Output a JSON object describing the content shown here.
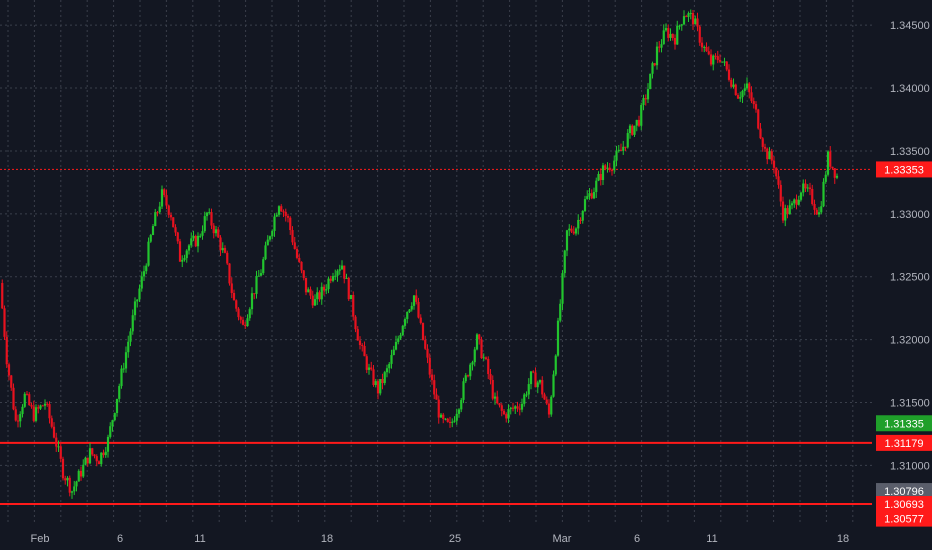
{
  "chart_data": {
    "type": "candlestick",
    "colors": {
      "background": "#131722",
      "up": "#22c52e",
      "down": "#e8121f",
      "grid": "#3a3f4b",
      "level_line": "#ff1a1a",
      "current_tag": "#1f9f2a",
      "neutral_tag": "#5a5e6b",
      "axis_text": "#b2b5be"
    },
    "x_start": "2019-01-28",
    "x_end": "2019-03-18",
    "x_labels": [
      "Feb",
      "6",
      "11",
      "18",
      "25",
      "Mar",
      "6",
      "11",
      "18"
    ],
    "y_ticks": [
      "1.34500",
      "1.34000",
      "1.33500",
      "1.33000",
      "1.32500",
      "1.32000",
      "1.31500",
      "1.31000"
    ],
    "ylim": [
      1.3055,
      1.347
    ],
    "level_tags": [
      {
        "label": "1.33353",
        "value": 1.33353,
        "color": "red",
        "line": "dotted"
      },
      {
        "label": "1.31335",
        "value": 1.31335,
        "color": "green",
        "line": "none"
      },
      {
        "label": "1.31179",
        "value": 1.31179,
        "color": "red",
        "line": "solid"
      },
      {
        "label": "1.30796",
        "value": 1.30796,
        "color": "gray",
        "line": "none"
      },
      {
        "label": "1.30693",
        "value": 1.30693,
        "color": "red",
        "line": "solid"
      },
      {
        "label": "1.30577",
        "value": 1.30577,
        "color": "red",
        "line": "none"
      }
    ],
    "close_path": [
      [
        0,
        1.3245
      ],
      [
        3,
        1.3185
      ],
      [
        7,
        1.3135
      ],
      [
        11,
        1.3155
      ],
      [
        15,
        1.314
      ],
      [
        20,
        1.315
      ],
      [
        24,
        1.3125
      ],
      [
        28,
        1.3095
      ],
      [
        32,
        1.308
      ],
      [
        36,
        1.3095
      ],
      [
        40,
        1.311
      ],
      [
        44,
        1.3105
      ],
      [
        48,
        1.312
      ],
      [
        52,
        1.3155
      ],
      [
        56,
        1.319
      ],
      [
        60,
        1.3225
      ],
      [
        64,
        1.3255
      ],
      [
        68,
        1.329
      ],
      [
        72,
        1.3315
      ],
      [
        76,
        1.33
      ],
      [
        80,
        1.3265
      ],
      [
        84,
        1.3275
      ],
      [
        88,
        1.328
      ],
      [
        92,
        1.33
      ],
      [
        96,
        1.3285
      ],
      [
        100,
        1.3265
      ],
      [
        104,
        1.323
      ],
      [
        108,
        1.321
      ],
      [
        112,
        1.3235
      ],
      [
        116,
        1.3255
      ],
      [
        120,
        1.3285
      ],
      [
        124,
        1.331
      ],
      [
        128,
        1.3295
      ],
      [
        132,
        1.3265
      ],
      [
        136,
        1.324
      ],
      [
        140,
        1.323
      ],
      [
        144,
        1.324
      ],
      [
        148,
        1.3255
      ],
      [
        152,
        1.326
      ],
      [
        156,
        1.323
      ],
      [
        160,
        1.3195
      ],
      [
        164,
        1.3175
      ],
      [
        168,
        1.316
      ],
      [
        172,
        1.3175
      ],
      [
        176,
        1.3195
      ],
      [
        180,
        1.322
      ],
      [
        184,
        1.3235
      ],
      [
        188,
        1.32
      ],
      [
        192,
        1.3165
      ],
      [
        196,
        1.3135
      ],
      [
        200,
        1.313
      ],
      [
        204,
        1.315
      ],
      [
        208,
        1.3175
      ],
      [
        212,
        1.32
      ],
      [
        216,
        1.318
      ],
      [
        220,
        1.315
      ],
      [
        224,
        1.314
      ],
      [
        228,
        1.3145
      ],
      [
        232,
        1.315
      ],
      [
        236,
        1.317
      ],
      [
        240,
        1.3165
      ],
      [
        244,
        1.314
      ],
      [
        248,
        1.321
      ],
      [
        252,
        1.3285
      ],
      [
        256,
        1.329
      ],
      [
        260,
        1.331
      ],
      [
        264,
        1.332
      ],
      [
        268,
        1.3335
      ],
      [
        272,
        1.334
      ],
      [
        276,
        1.335
      ],
      [
        280,
        1.3365
      ],
      [
        284,
        1.3375
      ],
      [
        288,
        1.34
      ],
      [
        292,
        1.343
      ],
      [
        296,
        1.3445
      ],
      [
        300,
        1.344
      ],
      [
        304,
        1.346
      ],
      [
        308,
        1.3455
      ],
      [
        312,
        1.3435
      ],
      [
        316,
        1.342
      ],
      [
        320,
        1.3425
      ],
      [
        324,
        1.341
      ],
      [
        328,
        1.3395
      ],
      [
        332,
        1.34
      ],
      [
        336,
        1.338
      ],
      [
        340,
        1.335
      ],
      [
        344,
        1.334
      ],
      [
        348,
        1.33
      ],
      [
        352,
        1.3305
      ],
      [
        356,
        1.332
      ],
      [
        360,
        1.3315
      ],
      [
        364,
        1.33
      ],
      [
        368,
        1.3345
      ],
      [
        372,
        1.333
      ]
    ]
  }
}
